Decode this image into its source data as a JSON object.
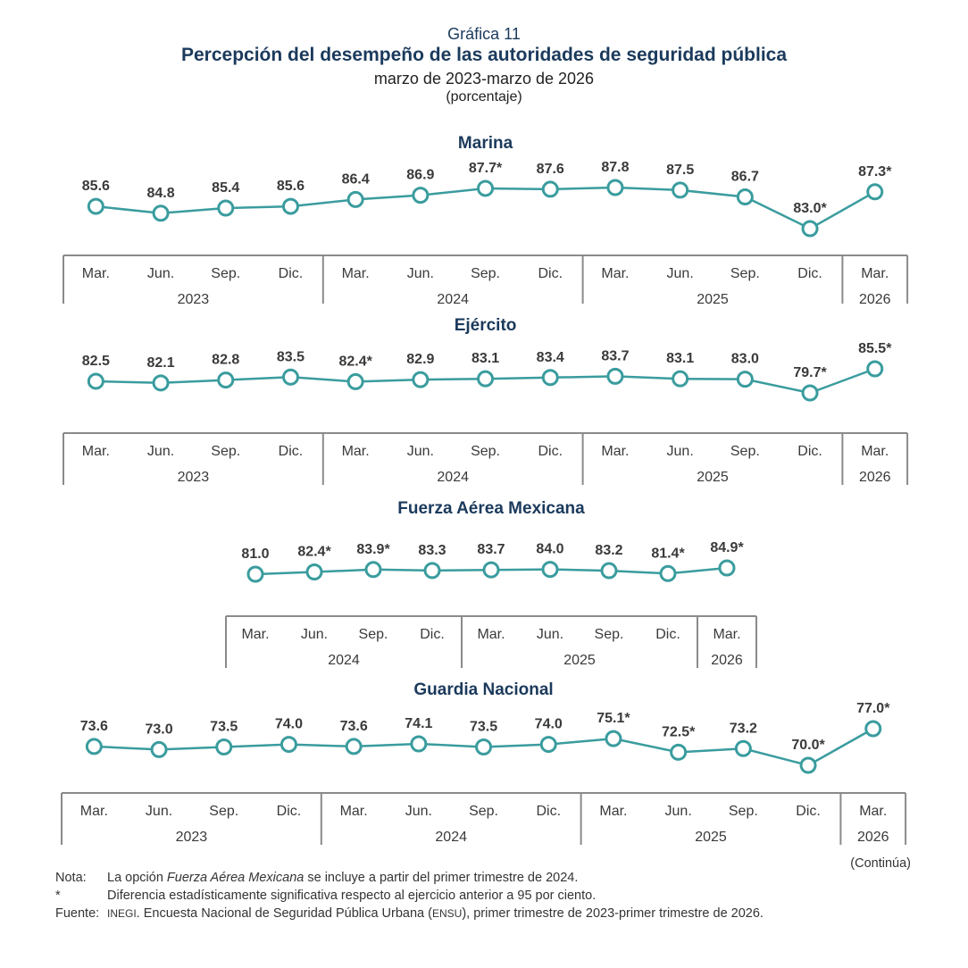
{
  "header": {
    "label": "Gráfica 11",
    "title": "Percepción del desempeño de las autoridades de seguridad pública",
    "subtitle": "marzo de 2023-marzo de 2026",
    "unit": "(porcentaje)"
  },
  "colors": {
    "line": "#3a9c9e",
    "marker_fill": "#ffffff",
    "title": "#1b3a5c",
    "axis": "#8a8a8a"
  },
  "chart_data": [
    {
      "type": "line",
      "title": "Marina",
      "categories": [
        "Mar.",
        "Jun.",
        "Sep.",
        "Dic.",
        "Mar.",
        "Jun.",
        "Sep.",
        "Dic.",
        "Mar.",
        "Jun.",
        "Sep.",
        "Dic.",
        "Mar."
      ],
      "years": [
        {
          "label": "2023",
          "count": 4
        },
        {
          "label": "2024",
          "count": 4
        },
        {
          "label": "2025",
          "count": 4
        },
        {
          "label": "2026",
          "count": 1
        }
      ],
      "values": [
        85.6,
        84.8,
        85.4,
        85.6,
        86.4,
        86.9,
        87.7,
        87.6,
        87.8,
        87.5,
        86.7,
        83.0,
        87.3
      ],
      "labels": [
        "85.6",
        "84.8",
        "85.4",
        "85.6",
        "86.4",
        "86.9",
        "87.7*",
        "87.6",
        "87.8",
        "87.5",
        "86.7",
        "83.0*",
        "87.3*"
      ]
    },
    {
      "type": "line",
      "title": "Ejército",
      "categories": [
        "Mar.",
        "Jun.",
        "Sep.",
        "Dic.",
        "Mar.",
        "Jun.",
        "Sep.",
        "Dic.",
        "Mar.",
        "Jun.",
        "Sep.",
        "Dic.",
        "Mar."
      ],
      "years": [
        {
          "label": "2023",
          "count": 4
        },
        {
          "label": "2024",
          "count": 4
        },
        {
          "label": "2025",
          "count": 4
        },
        {
          "label": "2026",
          "count": 1
        }
      ],
      "values": [
        82.5,
        82.1,
        82.8,
        83.5,
        82.4,
        82.9,
        83.1,
        83.4,
        83.7,
        83.1,
        83.0,
        79.7,
        85.5
      ],
      "labels": [
        "82.5",
        "82.1",
        "82.8",
        "83.5",
        "82.4*",
        "82.9",
        "83.1",
        "83.4",
        "83.7",
        "83.1",
        "83.0",
        "79.7*",
        "85.5*"
      ]
    },
    {
      "type": "line",
      "title": "Fuerza Aérea Mexicana",
      "categories": [
        "Mar.",
        "Jun.",
        "Sep.",
        "Dic.",
        "Mar.",
        "Jun.",
        "Sep.",
        "Dic.",
        "Mar."
      ],
      "years": [
        {
          "label": "2024",
          "count": 4
        },
        {
          "label": "2025",
          "count": 4
        },
        {
          "label": "2026",
          "count": 1
        }
      ],
      "values": [
        81.0,
        82.4,
        83.9,
        83.3,
        83.7,
        84.0,
        83.2,
        81.4,
        84.9
      ],
      "labels": [
        "81.0",
        "82.4*",
        "83.9*",
        "83.3",
        "83.7",
        "84.0",
        "83.2",
        "81.4*",
        "84.9*"
      ]
    },
    {
      "type": "line",
      "title": "Guardia Nacional",
      "categories": [
        "Mar.",
        "Jun.",
        "Sep.",
        "Dic.",
        "Mar.",
        "Jun.",
        "Sep.",
        "Dic.",
        "Mar.",
        "Jun.",
        "Sep.",
        "Dic.",
        "Mar."
      ],
      "years": [
        {
          "label": "2023",
          "count": 4
        },
        {
          "label": "2024",
          "count": 4
        },
        {
          "label": "2025",
          "count": 4
        },
        {
          "label": "2026",
          "count": 1
        }
      ],
      "values": [
        73.6,
        73.0,
        73.5,
        74.0,
        73.6,
        74.1,
        73.5,
        74.0,
        75.1,
        72.5,
        73.2,
        70.0,
        77.0
      ],
      "labels": [
        "73.6",
        "73.0",
        "73.5",
        "74.0",
        "73.6",
        "74.1",
        "73.5",
        "74.0",
        "75.1*",
        "72.5*",
        "73.2",
        "70.0*",
        "77.0*"
      ]
    }
  ],
  "continues": "(Continúa)",
  "notes": {
    "note_key": "Nota:",
    "note_prefix": "La opción ",
    "note_em": "Fuerza Aérea Mexicana",
    "note_suffix": " se incluye a partir del primer trimestre de 2024.",
    "star_key": "*",
    "star_text": "Diferencia estadísticamente significativa respecto al ejercicio anterior a 95 por ciento.",
    "source_key": "Fuente:",
    "source_org": "INEGI",
    "source_mid": ". Encuesta Nacional de Seguridad Pública Urbana (",
    "source_acr": "ENSU",
    "source_end": "), primer trimestre de 2023-primer trimestre de 2026."
  }
}
